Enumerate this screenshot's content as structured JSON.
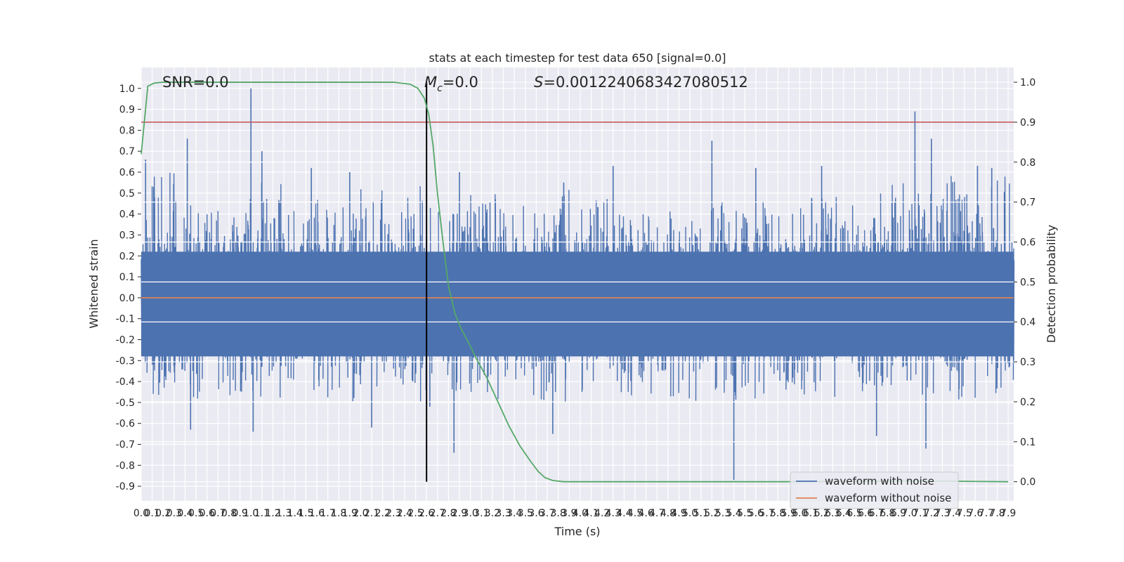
{
  "chart_data": {
    "type": "line",
    "title": "stats at each timestep for test data 650 [signal=0.0]",
    "xlabel": "Time (s)",
    "ylabel": "Whitened strain",
    "y2label": "Detection probability",
    "xlim": [
      0.0,
      7.95
    ],
    "ylim": [
      -0.97,
      1.1
    ],
    "y2lim": [
      -0.048,
      1.037
    ],
    "x_tick_step": 0.1,
    "y_ticks": [
      -0.9,
      -0.8,
      -0.7,
      -0.6,
      -0.5,
      -0.4,
      -0.3,
      -0.2,
      -0.1,
      0.0,
      0.1,
      0.2,
      0.3,
      0.4,
      0.5,
      0.6,
      0.7,
      0.8,
      0.9,
      1.0
    ],
    "y2_ticks": [
      0.0,
      0.1,
      0.2,
      0.3,
      0.4,
      0.5,
      0.6,
      0.7,
      0.8,
      0.9,
      1.0
    ],
    "grid": true,
    "legend_placement": "lower-right",
    "annotations": {
      "snr": "SNR=0.0",
      "mc_symbol": "M",
      "mc_sub": "c",
      "mc_value": "=0.0",
      "s_symbol": "S",
      "s_value": "=0.0012240683427080512"
    },
    "marker_x": 2.6,
    "threshold_y2": 0.9,
    "series": [
      {
        "name": "waveform with noise",
        "color": "#4c72b0",
        "kind": "noise",
        "envelope_high": [
          0.6,
          0.45,
          0.42,
          0.55,
          0.47,
          0.44,
          0.52,
          0.58,
          0.45,
          0.5,
          0.44,
          0.52,
          0.48,
          0.44,
          0.43,
          0.46,
          0.45,
          0.47,
          0.52,
          0.5,
          0.55,
          0.5,
          0.6,
          0.58
        ],
        "envelope_low": [
          -0.48,
          -0.5,
          -0.54,
          -0.5,
          -0.45,
          -0.5,
          -0.48,
          -0.5,
          -0.45,
          -0.52,
          -0.47,
          -0.5,
          -0.46,
          -0.5,
          -0.48,
          -0.52,
          -0.5,
          -0.46,
          -0.48,
          -0.5,
          -0.47,
          -0.51,
          -0.5,
          -0.48
        ],
        "spikes": [
          [
            0.04,
            0.66
          ],
          [
            0.42,
            0.76
          ],
          [
            1.0,
            1.0
          ],
          [
            1.02,
            -0.64
          ],
          [
            1.1,
            0.7
          ],
          [
            0.45,
            -0.63
          ],
          [
            2.6,
            0.58
          ],
          [
            2.63,
            -0.52
          ],
          [
            2.85,
            -0.74
          ],
          [
            2.9,
            0.6
          ],
          [
            3.85,
            0.55
          ],
          [
            3.75,
            -0.65
          ],
          [
            5.2,
            0.75
          ],
          [
            5.4,
            -0.87
          ],
          [
            5.6,
            0.62
          ],
          [
            6.7,
            -0.66
          ],
          [
            7.05,
            0.89
          ],
          [
            7.15,
            -0.72
          ],
          [
            7.2,
            0.76
          ],
          [
            7.62,
            0.63
          ],
          [
            7.75,
            0.62
          ],
          [
            4.3,
            0.63
          ],
          [
            6.2,
            0.63
          ],
          [
            1.55,
            0.62
          ],
          [
            1.9,
            0.6
          ],
          [
            2.1,
            -0.62
          ]
        ]
      },
      {
        "name": "waveform without noise",
        "color": "#dd8452",
        "kind": "flat",
        "value": 0.0
      },
      {
        "name": "",
        "color": "#55a868",
        "kind": "prob",
        "x": [
          0.0,
          0.06,
          0.12,
          0.2,
          0.5,
          1.0,
          1.5,
          2.0,
          2.3,
          2.45,
          2.52,
          2.58,
          2.62,
          2.66,
          2.7,
          2.75,
          2.8,
          2.86,
          2.92,
          2.98,
          3.05,
          3.15,
          3.25,
          3.35,
          3.45,
          3.55,
          3.62,
          3.68,
          3.75,
          3.85,
          4.0,
          5.0,
          6.0,
          7.0,
          7.9
        ],
        "y": [
          0.82,
          0.99,
          0.998,
          1.0,
          1.0,
          1.0,
          1.0,
          1.0,
          1.0,
          0.995,
          0.985,
          0.96,
          0.92,
          0.84,
          0.72,
          0.6,
          0.49,
          0.42,
          0.38,
          0.35,
          0.31,
          0.26,
          0.2,
          0.14,
          0.09,
          0.05,
          0.025,
          0.01,
          0.003,
          0.0,
          0.0,
          0.0,
          0.0,
          0.002,
          0.0
        ]
      },
      {
        "name": "",
        "color": "#c44e52",
        "kind": "threshold"
      },
      {
        "name": "",
        "color": "#000000",
        "kind": "marker"
      }
    ]
  }
}
